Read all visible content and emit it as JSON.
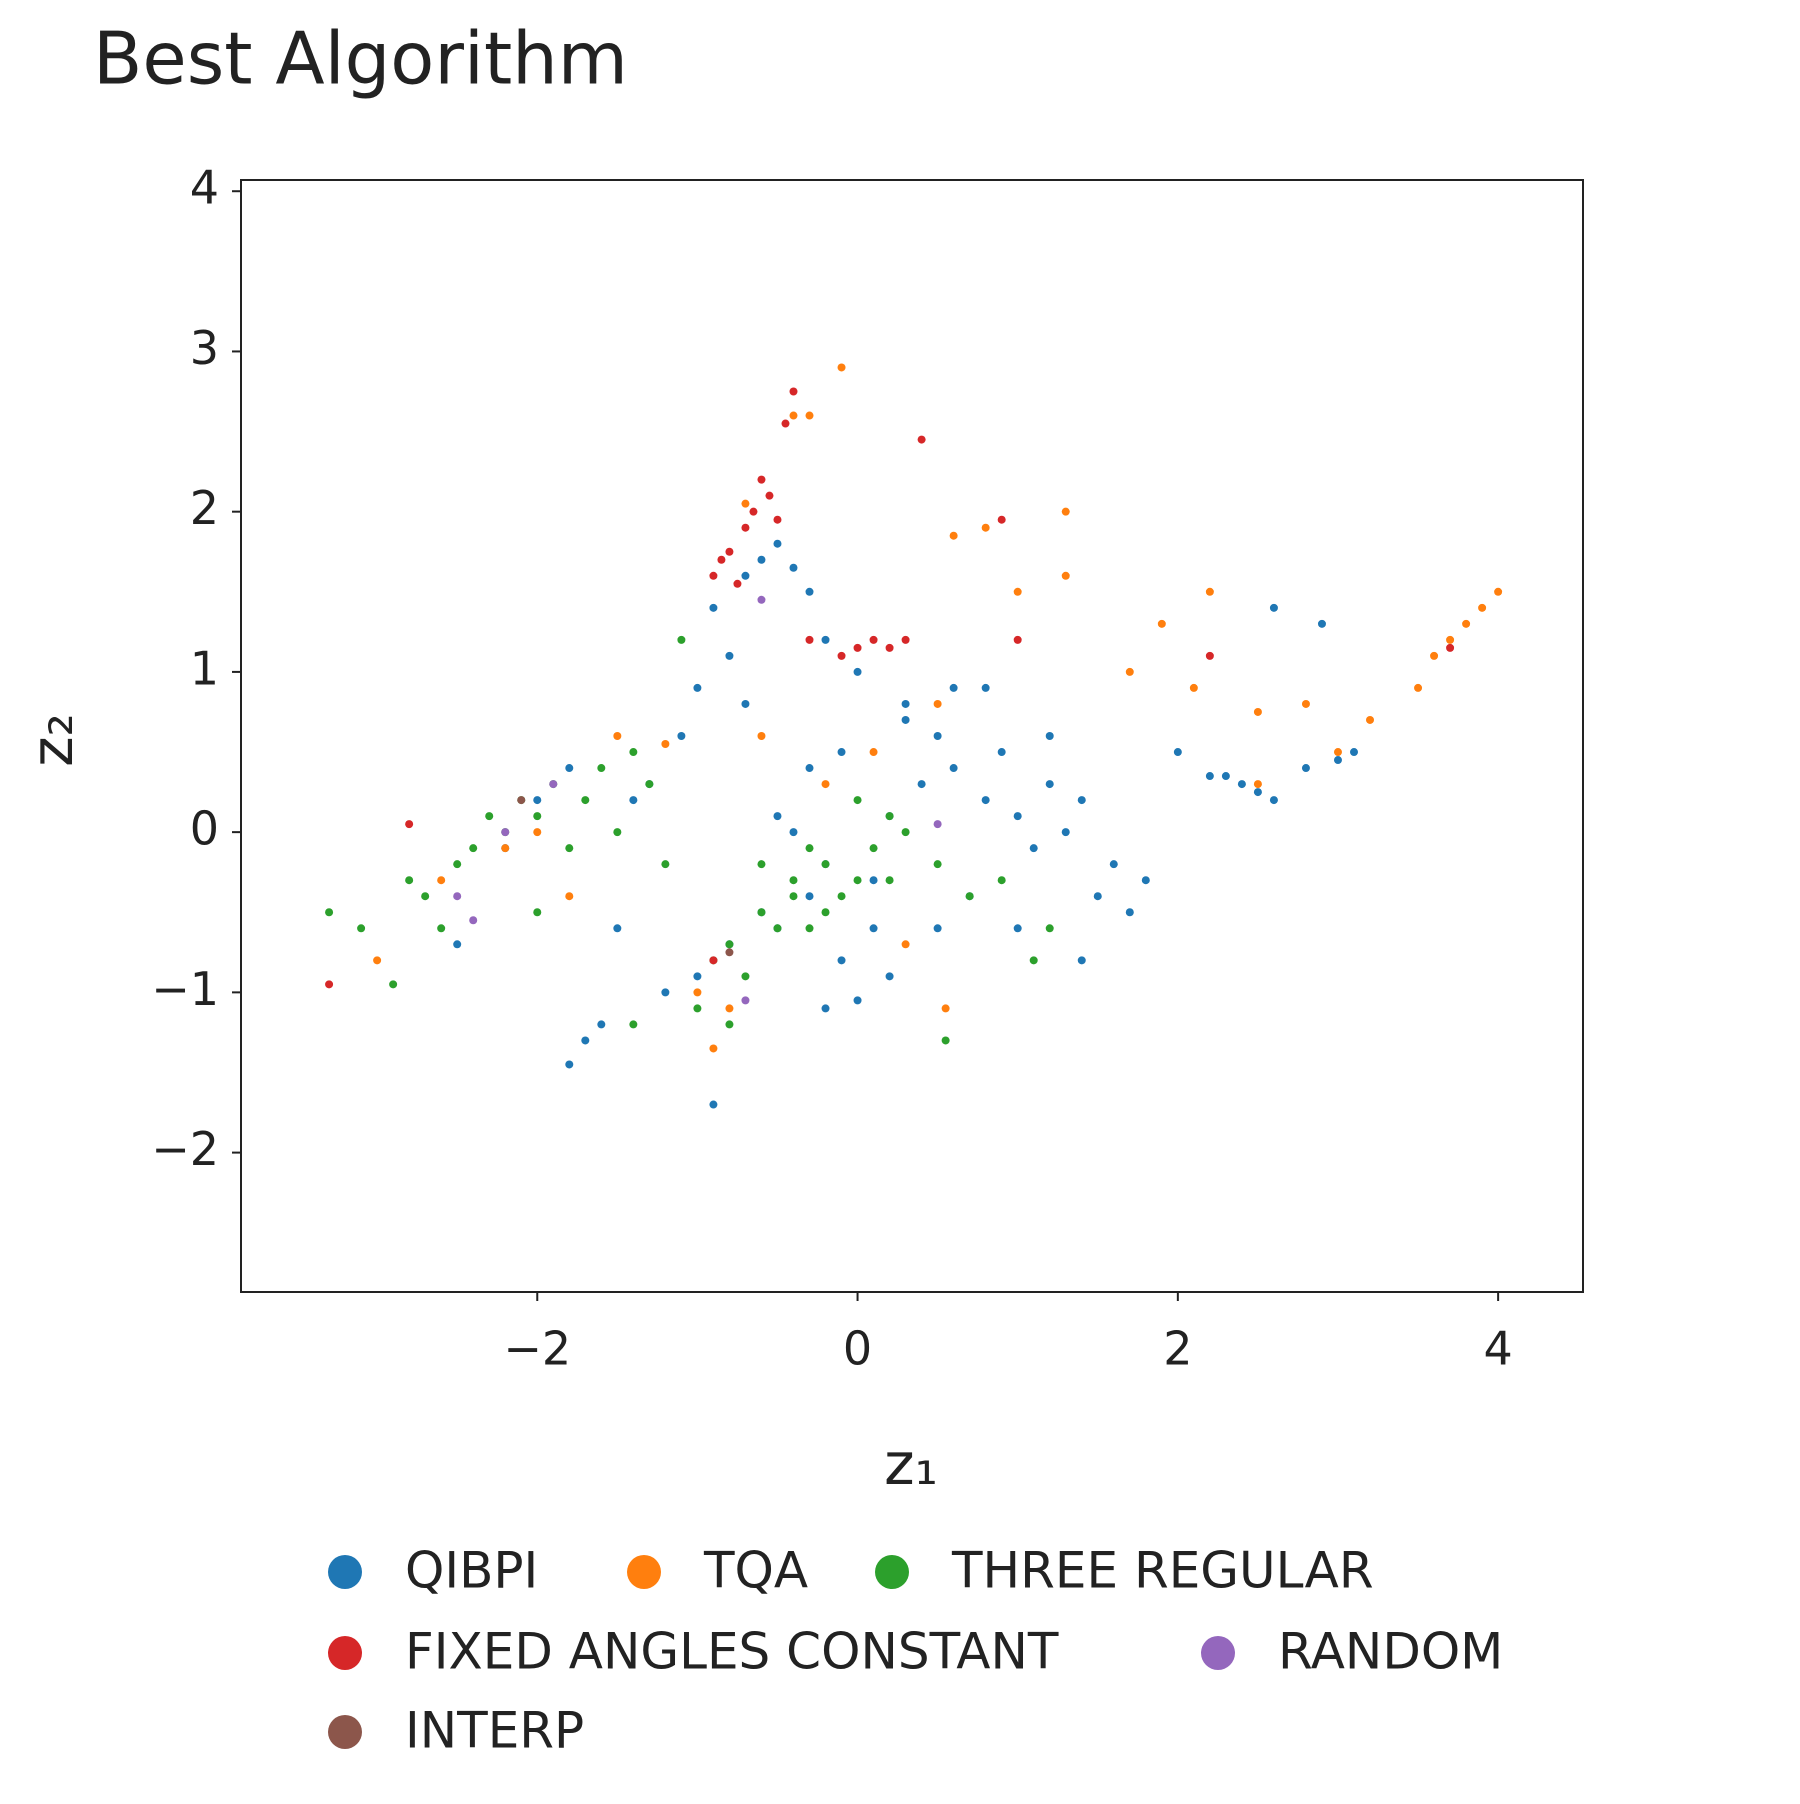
{
  "chart_data": {
    "type": "scatter",
    "title": "Best Algorithm",
    "xlabel": "z₁",
    "ylabel": "z₂",
    "xlim": [
      -3.85,
      4.53
    ],
    "ylim": [
      -2.87,
      4.07
    ],
    "xticks": [
      {
        "value": -2,
        "label": "−2"
      },
      0,
      2,
      4
    ],
    "yticks": [
      {
        "value": -2,
        "label": "−2"
      },
      {
        "value": -1,
        "label": "−1"
      },
      0,
      1,
      2,
      3,
      4
    ],
    "grid": false,
    "series": [
      {
        "name": "QIBPI",
        "color": "#1f77b4",
        "x": [
          -0.3,
          -0.2,
          -0.5,
          -0.1,
          0.1,
          -0.4,
          -0.6,
          -0.8,
          0.2,
          0.4,
          0.6,
          0.8,
          1.0,
          1.2,
          1.4,
          1.1,
          0.9,
          1.3,
          1.6,
          1.8,
          2.0,
          2.2,
          2.4,
          2.6,
          2.8,
          3.0,
          3.1,
          2.5,
          2.3,
          1.5,
          1.7,
          0.5,
          0.3,
          0.0,
          -0.2,
          -0.7,
          -0.9,
          -1.0,
          -0.6,
          -0.5,
          -0.4,
          -0.3,
          -0.8,
          -0.7,
          -1.1,
          -1.3,
          -1.5,
          -1.7,
          -1.8,
          -1.6,
          -1.2,
          -1.0,
          -0.9,
          -0.2,
          0.0,
          0.2,
          0.5,
          0.7,
          1.0,
          1.4,
          0.6,
          0.3,
          -0.1,
          -1.4,
          -1.8,
          -2.2,
          -2.5,
          -2.0,
          2.6,
          2.9,
          1.2,
          0.8,
          -0.5,
          -0.3,
          0.1
        ],
        "values": [
          -0.4,
          -0.2,
          -0.6,
          -0.8,
          -0.3,
          0.0,
          -0.5,
          -0.7,
          0.1,
          0.3,
          0.4,
          0.2,
          0.1,
          0.3,
          0.2,
          -0.1,
          0.5,
          0.0,
          -0.2,
          -0.3,
          0.5,
          0.35,
          0.3,
          0.2,
          0.4,
          0.45,
          0.5,
          0.25,
          0.35,
          -0.4,
          -0.5,
          0.6,
          0.8,
          1.0,
          1.2,
          1.6,
          1.4,
          0.9,
          1.7,
          1.8,
          1.65,
          1.5,
          1.1,
          0.8,
          0.6,
          0.3,
          -0.6,
          -1.3,
          -1.45,
          -1.2,
          -1.0,
          -0.9,
          -1.7,
          -1.1,
          -1.05,
          -0.9,
          -0.6,
          -0.4,
          -0.6,
          -0.8,
          0.9,
          0.7,
          0.5,
          0.2,
          0.4,
          -0.1,
          -0.7,
          0.2,
          1.4,
          1.3,
          0.6,
          0.9,
          0.1,
          0.4,
          -0.6
        ]
      },
      {
        "name": "TQA",
        "color": "#ff7f0e",
        "x": [
          3.7,
          3.8,
          3.9,
          4.0,
          3.6,
          3.5,
          3.2,
          3.0,
          2.8,
          2.5,
          2.2,
          1.9,
          1.7,
          1.3,
          1.0,
          0.8,
          0.6,
          0.5,
          -0.1,
          -0.3,
          -0.4,
          -0.7,
          -0.2,
          0.1,
          -1.2,
          -1.5,
          -1.8,
          -2.2,
          -2.6,
          -3.0,
          -1.0,
          -0.9,
          -0.8,
          0.55,
          0.3,
          1.3,
          2.1,
          2.5,
          -0.6,
          -2.0
        ],
        "values": [
          1.2,
          1.3,
          1.4,
          1.5,
          1.1,
          0.9,
          0.7,
          0.5,
          0.8,
          0.75,
          1.5,
          1.3,
          1.0,
          1.6,
          1.5,
          1.9,
          1.85,
          0.8,
          2.9,
          2.6,
          2.6,
          2.05,
          0.3,
          0.5,
          0.55,
          0.6,
          -0.4,
          -0.1,
          -0.3,
          -0.8,
          -1.0,
          -1.35,
          -1.1,
          -1.1,
          -0.7,
          2.0,
          0.9,
          0.3,
          0.6,
          0.0
        ]
      },
      {
        "name": "THREE REGULAR",
        "color": "#2ca02c",
        "x": [
          -3.3,
          -3.1,
          -2.9,
          -2.8,
          -2.6,
          -2.5,
          -2.4,
          -2.3,
          -2.2,
          -2.1,
          -2.0,
          -1.9,
          -1.8,
          -1.7,
          -1.6,
          -1.5,
          -1.4,
          -1.3,
          -1.2,
          -1.1,
          -0.9,
          -0.8,
          -0.7,
          -0.6,
          -0.5,
          -0.4,
          -0.3,
          -0.2,
          -0.1,
          0.0,
          0.1,
          0.2,
          0.3,
          -0.6,
          -0.4,
          -0.2,
          0.0,
          0.2,
          0.5,
          0.7,
          0.9,
          1.1,
          1.2,
          -1.0,
          -0.8,
          -1.4,
          -2.7,
          -2.0,
          -0.3,
          0.55
        ],
        "values": [
          -0.5,
          -0.6,
          -0.95,
          -0.3,
          -0.6,
          -0.2,
          -0.1,
          0.1,
          0.0,
          0.2,
          0.1,
          0.3,
          -0.1,
          0.2,
          0.4,
          0.0,
          0.5,
          0.3,
          -0.2,
          1.2,
          -0.8,
          -0.7,
          -0.9,
          -0.5,
          -0.6,
          -0.3,
          -0.1,
          -0.2,
          -0.4,
          -0.3,
          -0.1,
          0.1,
          0.0,
          -0.2,
          -0.4,
          -0.5,
          0.2,
          -0.3,
          -0.2,
          -0.4,
          -0.3,
          -0.8,
          -0.6,
          -1.1,
          -1.2,
          -1.2,
          -0.4,
          -0.5,
          -0.6,
          -1.3
        ]
      },
      {
        "name": "FIXED ANGLES CONSTANT",
        "color": "#d62728",
        "x": [
          -0.9,
          -0.85,
          -0.8,
          -0.75,
          -0.7,
          -0.65,
          -0.6,
          -0.55,
          -0.5,
          -0.45,
          -0.4,
          -0.3,
          -0.1,
          0.0,
          0.1,
          0.2,
          0.3,
          0.4,
          0.9,
          1.0,
          2.2,
          3.7,
          -3.3,
          -2.8,
          -0.9
        ],
        "values": [
          1.6,
          1.7,
          1.75,
          1.55,
          1.9,
          2.0,
          2.2,
          2.1,
          1.95,
          2.55,
          2.75,
          1.2,
          1.1,
          1.15,
          1.2,
          1.15,
          1.2,
          2.45,
          1.95,
          1.2,
          1.1,
          1.15,
          -0.95,
          0.05,
          -0.8
        ]
      },
      {
        "name": "RANDOM",
        "color": "#9467bd",
        "x": [
          -2.5,
          -2.4,
          -2.2,
          -0.7,
          0.5,
          -1.9,
          -0.6
        ],
        "values": [
          -0.4,
          -0.55,
          0.0,
          -1.05,
          0.05,
          0.3,
          1.45
        ]
      },
      {
        "name": "INTERP",
        "color": "#8c564b",
        "x": [
          -0.8,
          -2.1
        ],
        "values": [
          -0.75,
          0.2
        ]
      }
    ]
  }
}
